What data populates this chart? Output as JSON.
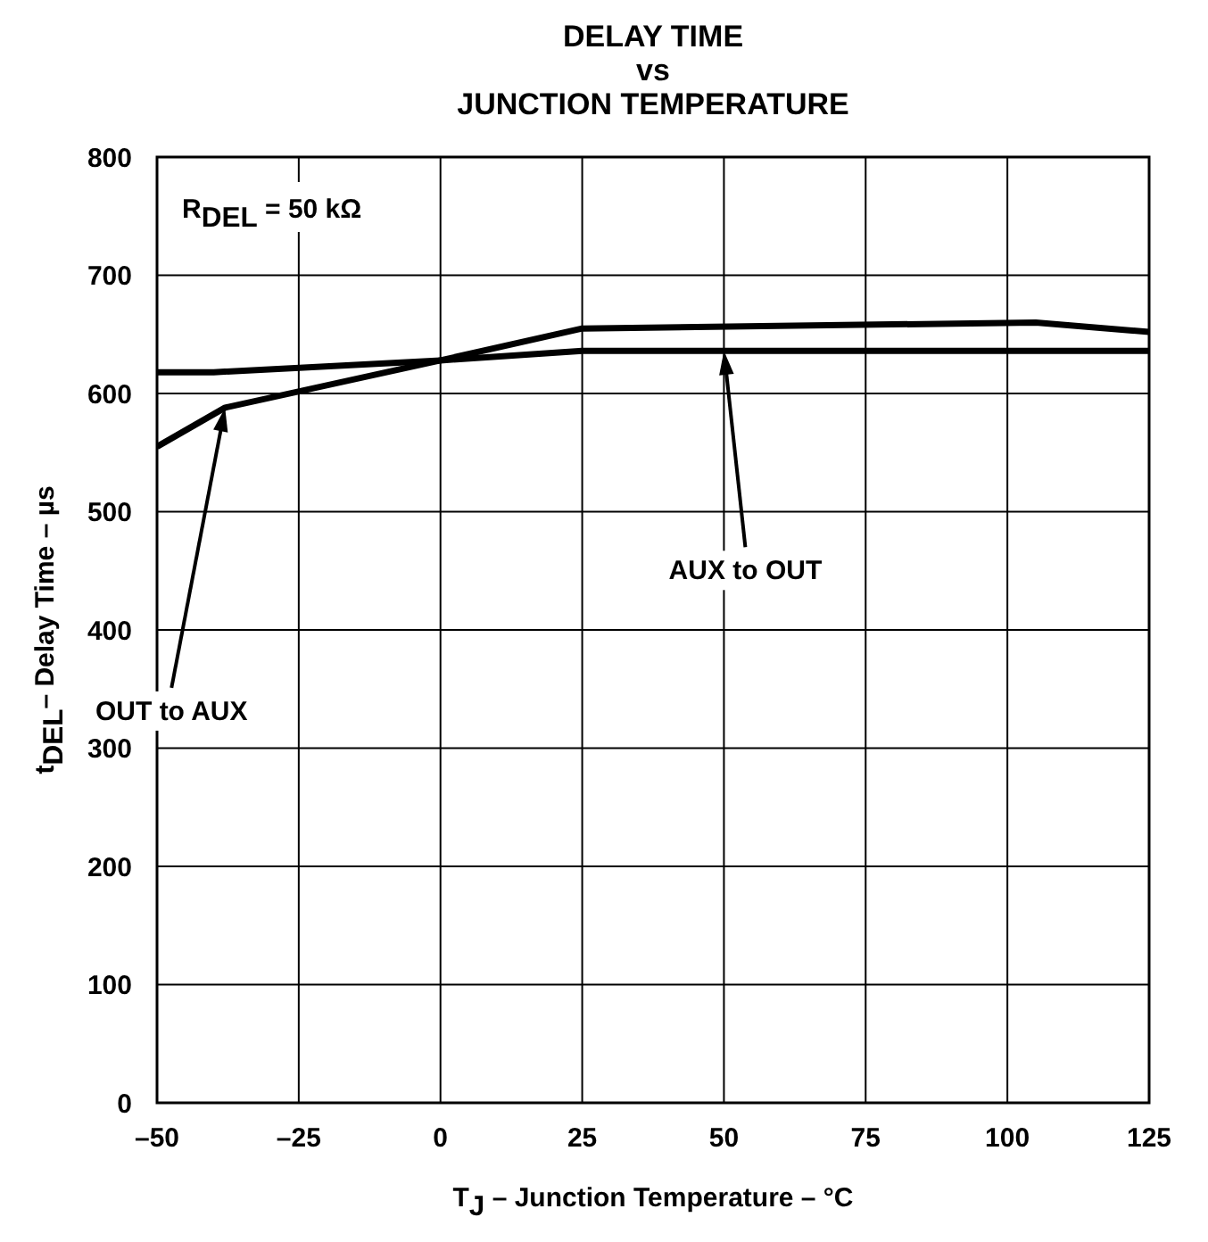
{
  "chart_data": {
    "type": "line",
    "title": "DELAY TIME\nvs\nJUNCTION TEMPERATURE",
    "xlabel": "T$_{J}$  –  Junction Temperature – °C",
    "ylabel": "t$_{DEL}$– Delay Time – µs",
    "x": [
      -50,
      -38,
      0,
      25,
      105,
      125
    ],
    "series": [
      {
        "color": "#000000",
        "values": [
          555,
          588,
          628,
          655,
          660,
          652
        ]
      },
      {
        "color": "#000000",
        "x": [
          -50,
          -40,
          0,
          25,
          50,
          125
        ],
        "values": [
          618,
          618,
          628,
          636,
          636,
          636
        ]
      }
    ],
    "annotations": [
      "R$_{DEL}$ = 50 kΩ",
      {
        "text": "OUT to AUX",
        "x": -38,
        "y": 588
      },
      {
        "text": "AUX to OUT",
        "x": 50,
        "y": 636
      }
    ],
    "xlim": [
      -50,
      125
    ],
    "ylim": [
      0,
      800
    ],
    "xticks": [
      {
        "value": -50,
        "label": "–50"
      },
      {
        "value": -25,
        "label": "–25"
      },
      0,
      25,
      50,
      75,
      100,
      125
    ],
    "yticks": [
      0,
      100,
      200,
      300,
      400,
      500,
      600,
      700,
      800
    ],
    "grid": true,
    "marker": "none",
    "line_style": "solid"
  }
}
